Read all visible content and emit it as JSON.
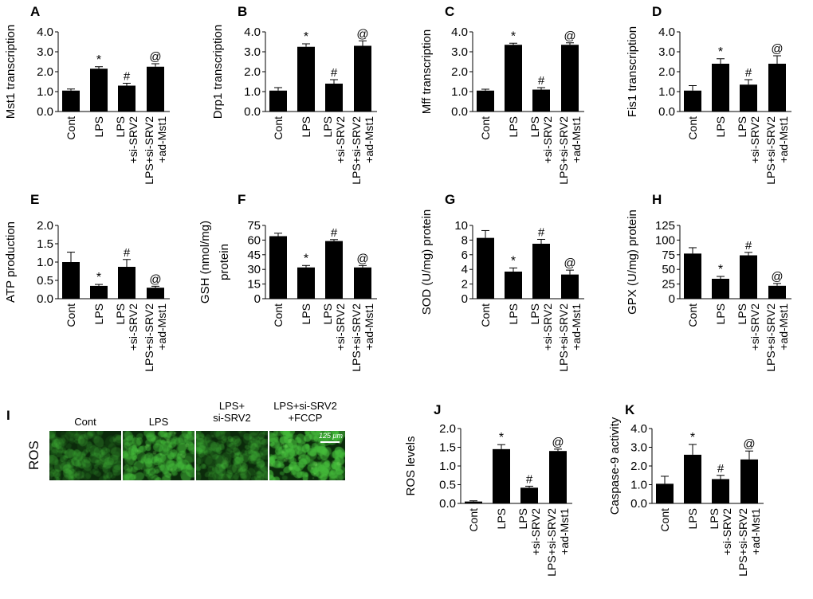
{
  "colors": {
    "bar": "#000000",
    "micro_bg": "#0b2a0b",
    "micro_cell": "#2e8a2a",
    "micro_cell_bright": "#56c24a"
  },
  "chart_data": [
    {
      "panel": "A",
      "type": "bar",
      "ylabel": "Mst1 transcription",
      "categories": [
        "Cont",
        "LPS",
        "LPS\n+si-SRV2",
        "LPS+si-SRV2\n+ad-Mst1"
      ],
      "values": [
        1.05,
        2.15,
        1.3,
        2.25
      ],
      "errors": [
        0.08,
        0.1,
        0.12,
        0.15
      ],
      "annotations": [
        "",
        "*",
        "#",
        "@"
      ],
      "ylim": [
        0,
        4
      ],
      "yticks": [
        "0.0",
        "1.0",
        "2.0",
        "3.0",
        "4.0"
      ]
    },
    {
      "panel": "B",
      "type": "bar",
      "ylabel": "Drp1 transcription",
      "categories": [
        "Cont",
        "LPS",
        "LPS\n+si-SRV2",
        "LPS+si-SRV2\n+ad-Mst1"
      ],
      "values": [
        1.05,
        3.25,
        1.4,
        3.3
      ],
      "errors": [
        0.15,
        0.15,
        0.2,
        0.25
      ],
      "annotations": [
        "",
        "*",
        "#",
        "@"
      ],
      "ylim": [
        0,
        4
      ],
      "yticks": [
        "0.0",
        "1.0",
        "2.0",
        "3.0",
        "4.0"
      ]
    },
    {
      "panel": "C",
      "type": "bar",
      "ylabel": "Mff transcription",
      "categories": [
        "Cont",
        "LPS",
        "LPS\n+si-SRV2",
        "LPS+si-SRV2\n+ad-Mst1"
      ],
      "values": [
        1.05,
        3.35,
        1.1,
        3.35
      ],
      "errors": [
        0.07,
        0.08,
        0.1,
        0.1
      ],
      "annotations": [
        "",
        "*",
        "#",
        "@"
      ],
      "ylim": [
        0,
        4
      ],
      "yticks": [
        "0.0",
        "1.0",
        "2.0",
        "3.0",
        "4.0"
      ]
    },
    {
      "panel": "D",
      "type": "bar",
      "ylabel": "Fis1 transcription",
      "categories": [
        "Cont",
        "LPS",
        "LPS\n+si-SRV2",
        "LPS+si-SRV2\n+ad-Mst1"
      ],
      "values": [
        1.05,
        2.4,
        1.35,
        2.4
      ],
      "errors": [
        0.25,
        0.25,
        0.25,
        0.4
      ],
      "annotations": [
        "",
        "*",
        "#",
        "@"
      ],
      "ylim": [
        0,
        4
      ],
      "yticks": [
        "0.0",
        "1.0",
        "2.0",
        "3.0",
        "4.0"
      ]
    },
    {
      "panel": "E",
      "type": "bar",
      "ylabel": "ATP production",
      "categories": [
        "Cont",
        "LPS",
        "LPS\n+si-SRV2",
        "LPS+si-SRV2\n+ad-Mst1"
      ],
      "values": [
        1.0,
        0.35,
        0.87,
        0.3
      ],
      "errors": [
        0.27,
        0.04,
        0.2,
        0.04
      ],
      "annotations": [
        "",
        "*",
        "#",
        "@"
      ],
      "ylim": [
        0,
        2
      ],
      "yticks": [
        "0.0",
        "0.5",
        "1.0",
        "1.5",
        "2.0"
      ]
    },
    {
      "panel": "F",
      "type": "bar",
      "ylabel": "GSH (nmol/mg)\nprotein",
      "categories": [
        "Cont",
        "LPS",
        "LPS\n+si-SRV2",
        "LPS+si-SRV2\n+ad-Mst1"
      ],
      "values": [
        64,
        32,
        59,
        32
      ],
      "errors": [
        3,
        2,
        1.5,
        2
      ],
      "annotations": [
        "",
        "*",
        "#",
        "@"
      ],
      "ylim": [
        0,
        75
      ],
      "yticks": [
        "0",
        "15",
        "30",
        "45",
        "60",
        "75"
      ]
    },
    {
      "panel": "G",
      "type": "bar",
      "ylabel": "SOD (U/mg) protein",
      "categories": [
        "Cont",
        "LPS",
        "LPS\n+si-SRV2",
        "LPS+si-SRV2\n+ad-Mst1"
      ],
      "values": [
        8.3,
        3.7,
        7.5,
        3.3
      ],
      "errors": [
        1.0,
        0.5,
        0.6,
        0.6
      ],
      "annotations": [
        "",
        "*",
        "#",
        "@"
      ],
      "ylim": [
        0,
        10
      ],
      "yticks": [
        "0",
        "2",
        "4",
        "6",
        "8",
        "10"
      ]
    },
    {
      "panel": "H",
      "type": "bar",
      "ylabel": "GPX (U/mg) protein",
      "categories": [
        "Cont",
        "LPS",
        "LPS\n+si-SRV2",
        "LPS+si-SRV2\n+ad-Mst1"
      ],
      "values": [
        77,
        34,
        74,
        22
      ],
      "errors": [
        10,
        4,
        5,
        4
      ],
      "annotations": [
        "",
        "*",
        "#",
        "@"
      ],
      "ylim": [
        0,
        125
      ],
      "yticks": [
        "0",
        "25",
        "50",
        "75",
        "100",
        "125"
      ]
    },
    {
      "panel": "J",
      "type": "bar",
      "ylabel": "ROS levels",
      "categories": [
        "Cont",
        "LPS",
        "LPS\n+si-SRV2",
        "LPS+si-SRV2\n+ad-Mst1"
      ],
      "values": [
        0.05,
        1.45,
        0.42,
        1.4
      ],
      "errors": [
        0.02,
        0.12,
        0.04,
        0.05
      ],
      "annotations": [
        "",
        "*",
        "#",
        "@"
      ],
      "ylim": [
        0,
        2
      ],
      "yticks": [
        "0.0",
        "0.5",
        "1.0",
        "1.5",
        "2.0"
      ]
    },
    {
      "panel": "K",
      "type": "bar",
      "ylabel": "Caspase-9 activity",
      "categories": [
        "Cont",
        "LPS",
        "LPS\n+si-SRV2",
        "LPS+si-SRV2\n+ad-Mst1"
      ],
      "values": [
        1.05,
        2.6,
        1.3,
        2.35
      ],
      "errors": [
        0.4,
        0.55,
        0.2,
        0.45
      ],
      "annotations": [
        "",
        "*",
        "#",
        "@"
      ],
      "ylim": [
        0,
        4
      ],
      "yticks": [
        "0.0",
        "1.0",
        "2.0",
        "3.0",
        "4.0"
      ]
    }
  ],
  "panel_i": {
    "letter": "I",
    "row_label": "ROS",
    "columns": [
      "Cont",
      "LPS",
      "LPS+\nsi-SRV2",
      "LPS+si-SRV2\n+FCCP"
    ],
    "scale_bar": "125 μm",
    "brightness": [
      0.35,
      0.7,
      0.4,
      0.9
    ]
  }
}
